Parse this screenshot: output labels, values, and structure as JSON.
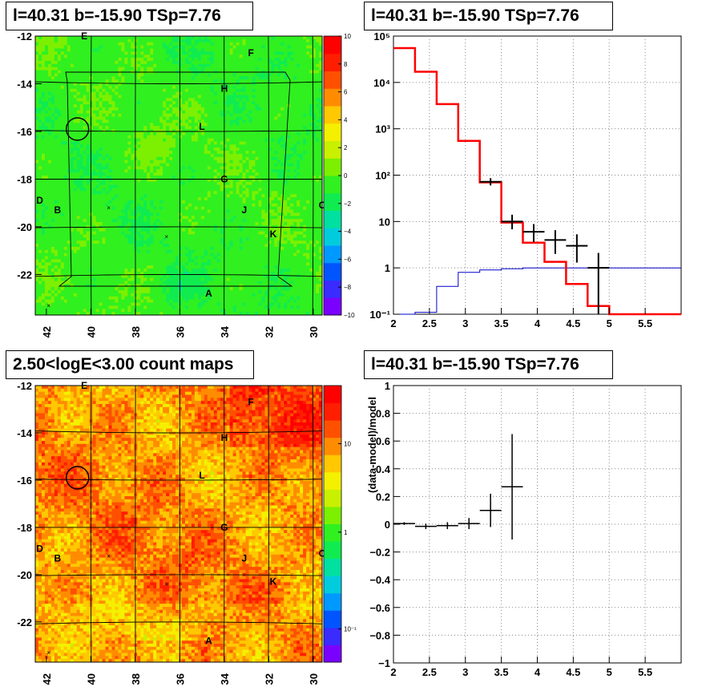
{
  "titles": {
    "map_top": "l=40.31 b=-15.90 TSp=7.76",
    "spectrum": "l=40.31 b=-15.90 TSp=7.76",
    "map_bottom": "2.50<logE<3.00 count maps",
    "residual": "l=40.31 b=-15.90 TSp=7.76"
  },
  "colors": {
    "data": "#000000",
    "model": "#ff0000",
    "background_model": "#0000cc",
    "grid": "#888888"
  },
  "map_axes": {
    "x_ticks": [
      "42",
      "40",
      "38",
      "36",
      "34",
      "32",
      "30"
    ],
    "y_ticks": [
      "-12",
      "-14",
      "-16",
      "-18",
      "-20",
      "-22"
    ],
    "source_labels": [
      {
        "name": "E",
        "l": 40.3,
        "b": -12.0
      },
      {
        "name": "F",
        "l": 32.8,
        "b": -12.7
      },
      {
        "name": "H",
        "l": 34.0,
        "b": -14.2
      },
      {
        "name": "L",
        "l": 35.0,
        "b": -15.8
      },
      {
        "name": "G",
        "l": 34.0,
        "b": -18.0
      },
      {
        "name": "D",
        "l": 42.3,
        "b": -18.9
      },
      {
        "name": "B",
        "l": 41.5,
        "b": -19.3
      },
      {
        "name": "J",
        "l": 33.1,
        "b": -19.3
      },
      {
        "name": "C",
        "l": 29.6,
        "b": -19.1
      },
      {
        "name": "K",
        "l": 31.8,
        "b": -20.3
      },
      {
        "name": "A",
        "l": 34.7,
        "b": -22.8
      }
    ],
    "crosses": [
      {
        "l": 39.2,
        "b": -19.2
      },
      {
        "l": 36.6,
        "b": -20.4
      },
      {
        "l": 41.9,
        "b": -23.3
      }
    ],
    "target": {
      "l": 40.6,
      "b": -15.9
    }
  },
  "colorbar_top": {
    "ticks": [
      "10",
      "8",
      "6",
      "4",
      "2",
      "0",
      "−2",
      "−4",
      "−6",
      "−8",
      "−10"
    ]
  },
  "colorbar_bottom": {
    "ticks": [
      "10",
      "1",
      "10⁻¹"
    ]
  },
  "chart_data": [
    {
      "type": "heatmap",
      "title": "l=40.31 b=-15.90 TSp=7.76",
      "xlim": [
        42.5,
        29.6
      ],
      "ylim": [
        -23.7,
        -12.0
      ],
      "zlim": [
        -10,
        10
      ]
    },
    {
      "type": "line",
      "title": "l=40.31 b=-15.90 TSp=7.76",
      "log_y": true,
      "xlim": [
        2.0,
        6.0
      ],
      "ylim": [
        0.1,
        100000
      ],
      "x_ticks": [
        "2",
        "2.5",
        "3",
        "3.5",
        "4",
        "4.5",
        "5",
        "5.5"
      ],
      "y_ticks": [
        "10⁵",
        "10⁴",
        "10³",
        "10²",
        "10",
        "1",
        "10⁻¹"
      ],
      "series": [
        {
          "style": "step",
          "edges": [
            2.0,
            2.3,
            2.6,
            2.9,
            3.2,
            3.5,
            3.8,
            4.1,
            4.4,
            4.7,
            5.0,
            6.0
          ],
          "values": [
            55000,
            17000,
            3400,
            550,
            70,
            9.5,
            3.5,
            1.35,
            0.45,
            0.15,
            0.1
          ]
        },
        {
          "style": "step",
          "edges": [
            2.0,
            2.3,
            2.6,
            2.9,
            3.2,
            3.5,
            3.8,
            4.1,
            4.4,
            4.7,
            5.0,
            6.0
          ],
          "values": [
            0.07,
            0.11,
            0.4,
            0.8,
            0.9,
            0.96,
            1.0,
            1.0,
            1.0,
            1.0,
            1.0
          ]
        },
        {
          "style": "errorbar",
          "points": [
            {
              "x": 3.35,
              "y": 72,
              "xerr": 0.15,
              "ylo": 60,
              "yhi": 86
            },
            {
              "x": 3.65,
              "y": 10,
              "xerr": 0.15,
              "ylo": 6.8,
              "yhi": 14
            },
            {
              "x": 3.95,
              "y": 6,
              "xerr": 0.15,
              "ylo": 3.6,
              "yhi": 8.8
            },
            {
              "x": 4.25,
              "y": 4,
              "xerr": 0.15,
              "ylo": 2.0,
              "yhi": 6.5
            },
            {
              "x": 4.55,
              "y": 3,
              "xerr": 0.15,
              "ylo": 1.3,
              "yhi": 5.3
            },
            {
              "x": 4.85,
              "y": 1,
              "xerr": 0.15,
              "ylo": 0.1,
              "yhi": 2.1
            }
          ]
        }
      ]
    },
    {
      "type": "heatmap",
      "title": "2.50<logE<3.00 count maps",
      "xlim": [
        42.5,
        29.6
      ],
      "ylim": [
        -23.7,
        -12.0
      ],
      "zlim": [
        0.05,
        30
      ],
      "log_z": true
    },
    {
      "type": "scatter",
      "title": "l=40.31 b=-15.90 TSp=7.76",
      "ylabel": "(data-model)/model",
      "xlim": [
        2.0,
        6.0
      ],
      "ylim": [
        -1.0,
        1.0
      ],
      "x_ticks": [
        "2",
        "2.5",
        "3",
        "3.5",
        "4",
        "4.5",
        "5",
        "5.5"
      ],
      "y_ticks": [
        "1",
        "0.8",
        "0.6",
        "0.4",
        "0.2",
        "0",
        "−0.2",
        "−0.4",
        "−0.6",
        "−0.8",
        "−1"
      ],
      "points": [
        {
          "x": 2.15,
          "y": 0.005,
          "xerr": 0.15,
          "yerr": 0.01
        },
        {
          "x": 2.45,
          "y": -0.015,
          "xerr": 0.15,
          "yerr": 0.02
        },
        {
          "x": 2.75,
          "y": -0.01,
          "xerr": 0.15,
          "yerr": 0.025
        },
        {
          "x": 3.05,
          "y": 0.005,
          "xerr": 0.15,
          "yerr": 0.04
        },
        {
          "x": 3.35,
          "y": 0.1,
          "xerr": 0.15,
          "yerr": 0.12
        },
        {
          "x": 3.65,
          "y": 0.27,
          "xerr": 0.15,
          "yerr": 0.38
        }
      ]
    }
  ]
}
